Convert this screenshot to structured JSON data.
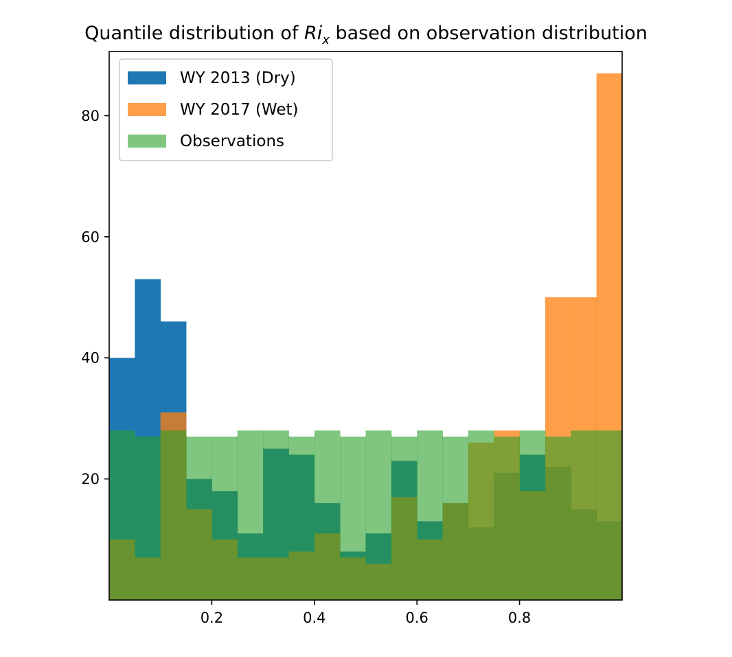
{
  "chart_data": {
    "type": "bar",
    "title_parts": {
      "before": "Quantile distribution of ",
      "var_main": "Ri",
      "var_sub": "x",
      "after": " based on observation distribution"
    },
    "xlabel": "",
    "ylabel": "",
    "xlim": [
      0.0,
      1.0
    ],
    "ylim": [
      0,
      90.6
    ],
    "xticks": [
      {
        "value": 0.2,
        "label": "0.2"
      },
      {
        "value": 0.4,
        "label": "0.4"
      },
      {
        "value": 0.6,
        "label": "0.6"
      },
      {
        "value": 0.8,
        "label": "0.8"
      }
    ],
    "yticks": [
      {
        "value": 20,
        "label": "20"
      },
      {
        "value": 40,
        "label": "40"
      },
      {
        "value": 60,
        "label": "60"
      },
      {
        "value": 80,
        "label": "80"
      }
    ],
    "bin_edges": [
      0.0,
      0.05,
      0.1,
      0.15,
      0.2,
      0.25,
      0.3,
      0.35,
      0.4,
      0.45,
      0.5,
      0.55,
      0.6,
      0.65,
      0.7,
      0.75,
      0.8,
      0.85,
      0.9,
      0.95,
      1.0
    ],
    "grid": false,
    "legend_position": "top-left",
    "series": [
      {
        "name": "WY 2013 (Dry)",
        "color": "#1f77b4",
        "alpha": 1.0,
        "values": [
          40,
          53,
          46,
          20,
          18,
          11,
          25,
          24,
          16,
          8,
          11,
          23,
          13,
          16,
          12,
          21,
          24,
          22,
          15,
          13
        ]
      },
      {
        "name": "WY 2017 (Wet)",
        "color": "#ff7f0e",
        "alpha": 0.75,
        "values": [
          10,
          7,
          31,
          15,
          10,
          7,
          7,
          8,
          11,
          7,
          6,
          17,
          10,
          16,
          26,
          28,
          18,
          50,
          50,
          87
        ]
      },
      {
        "name": "Observations",
        "color": "#2ca02c",
        "alpha": 0.6,
        "values": [
          28,
          27,
          28,
          27,
          27,
          28,
          28,
          27,
          28,
          27,
          28,
          27,
          28,
          27,
          28,
          27,
          28,
          27,
          28,
          28
        ]
      }
    ]
  }
}
